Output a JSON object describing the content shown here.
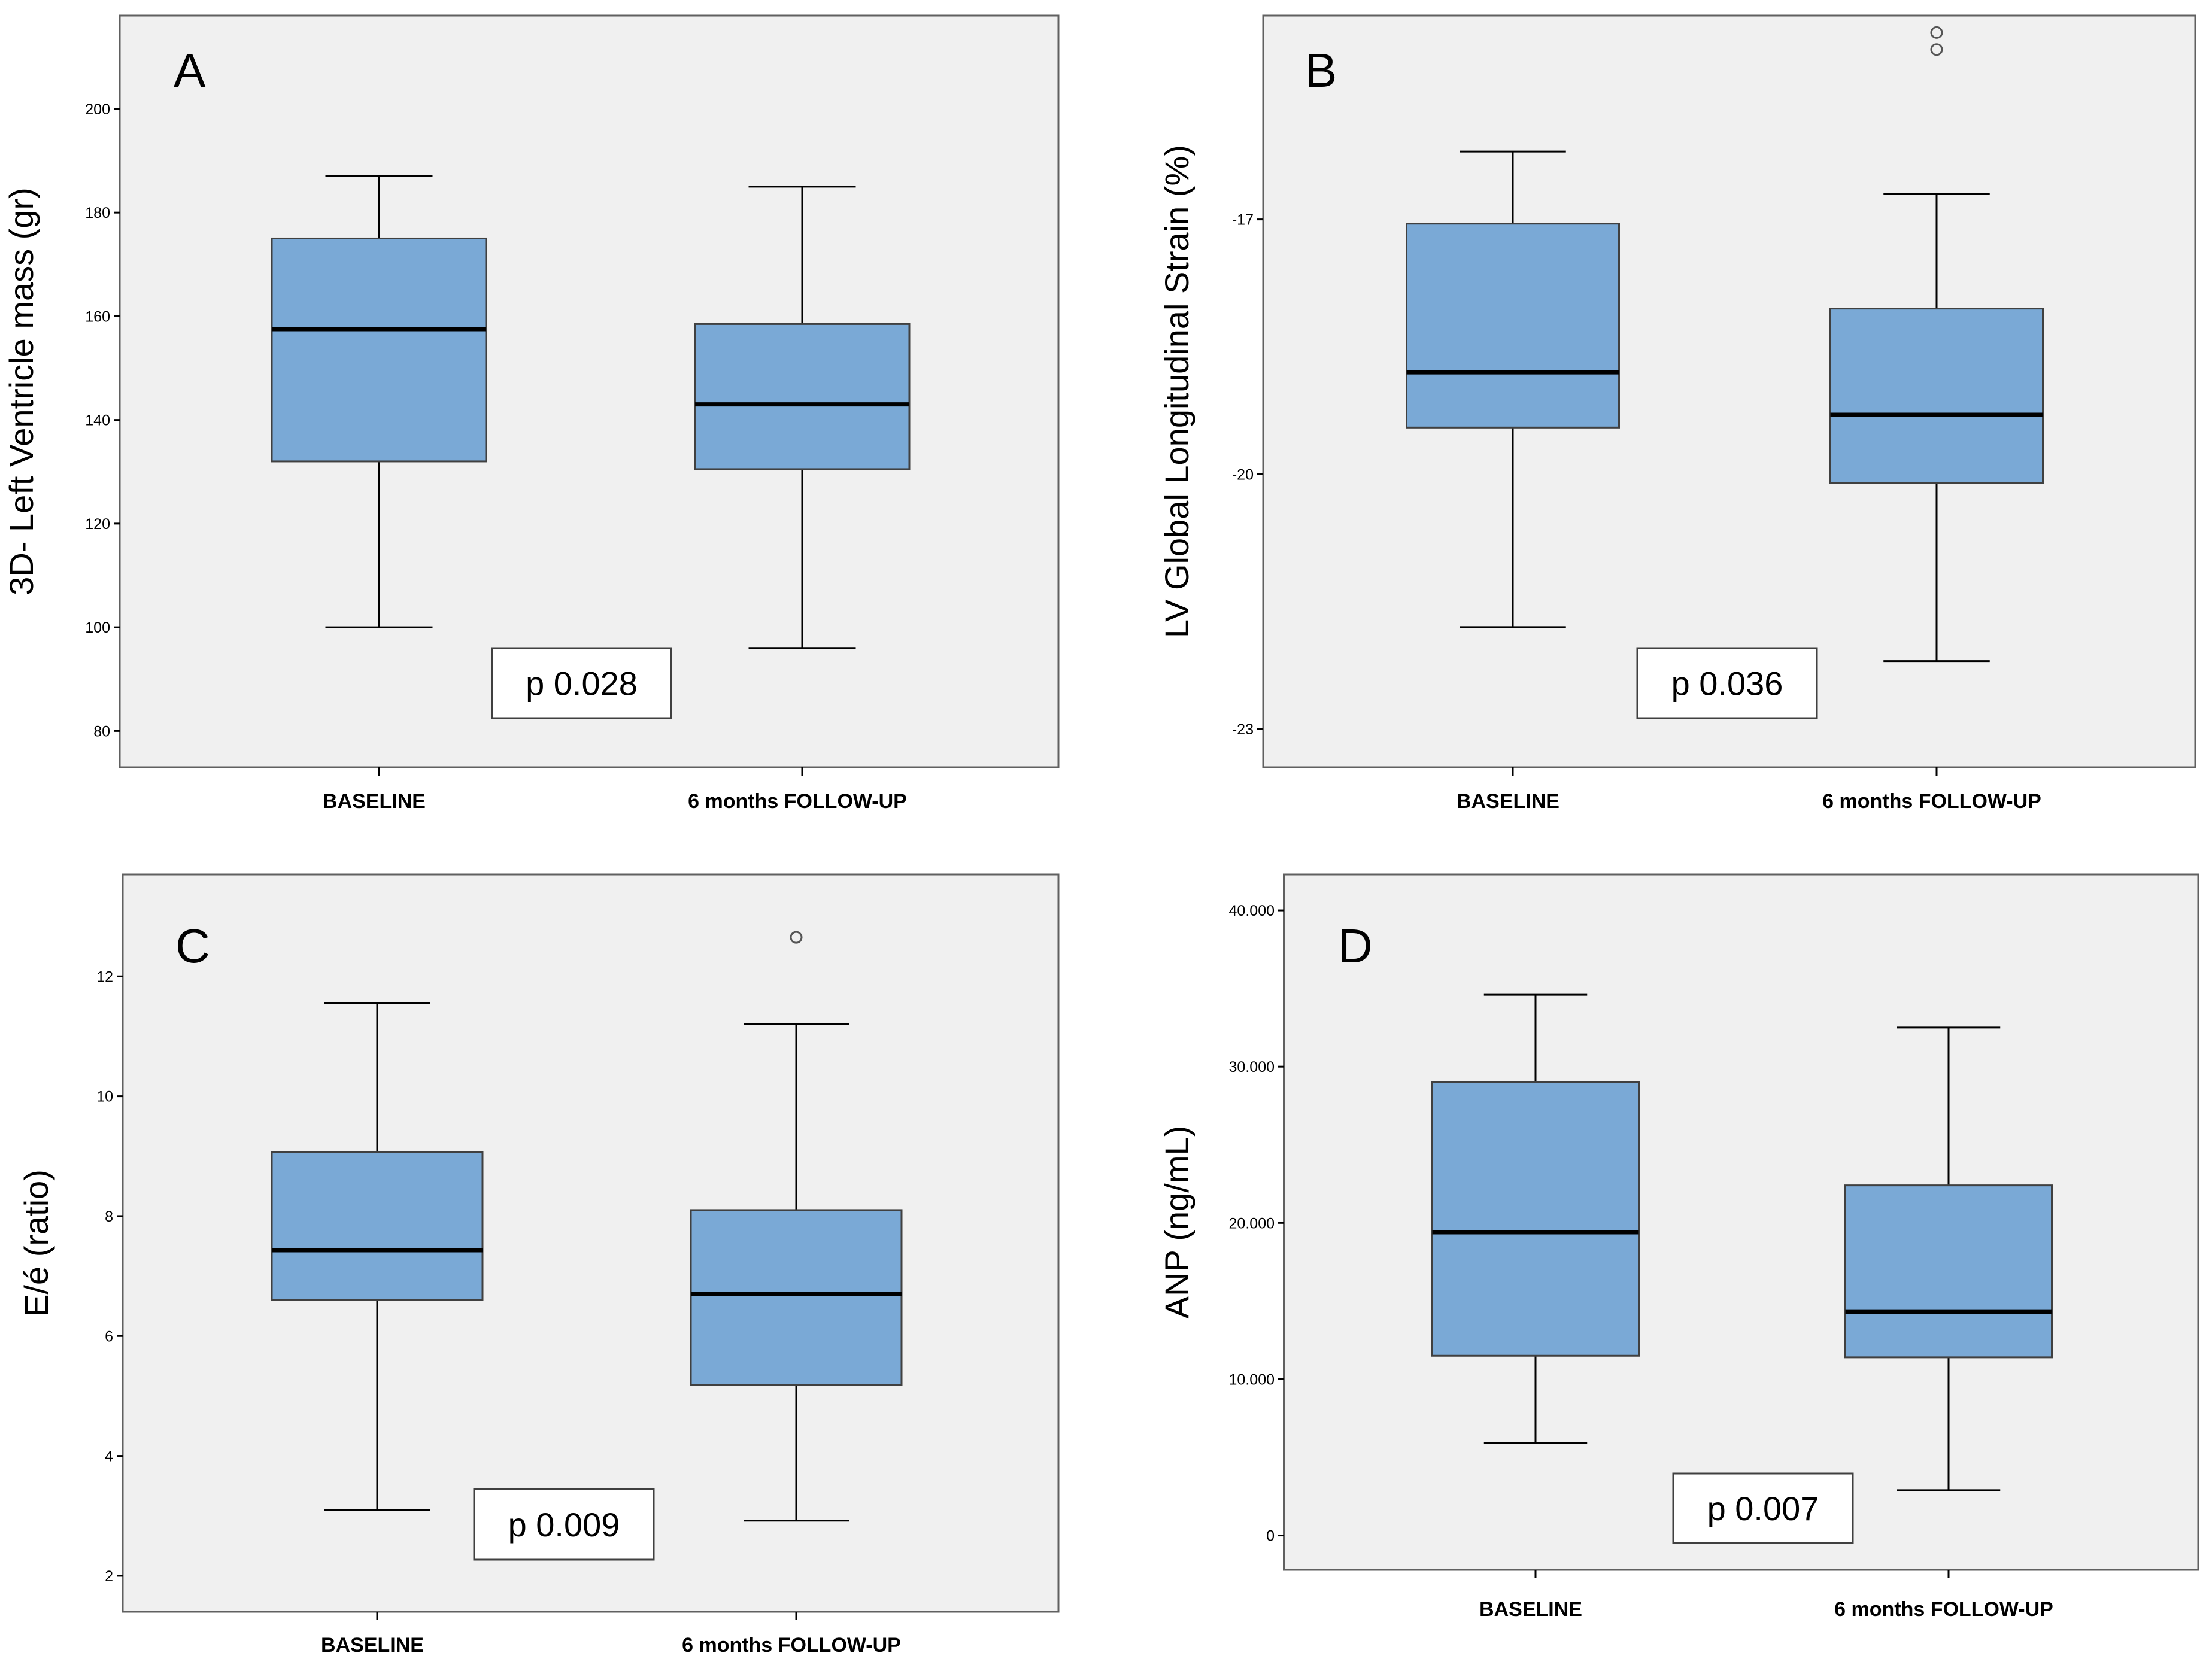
{
  "chart_data": [
    {
      "type": "box",
      "panel": "A",
      "ylabel": "3D- Left Ventricle mass (gr)",
      "categories": [
        "BASELINE",
        "6 months FOLLOW-UP"
      ],
      "ylim": [
        73,
        218
      ],
      "yticks": [
        "80",
        "100",
        "120",
        "140",
        "160",
        "180",
        "200"
      ],
      "ytick_values": [
        80,
        100,
        120,
        140,
        160,
        180,
        200
      ],
      "boxes": [
        {
          "min": 100,
          "q1": 132,
          "median": 157.5,
          "q3": 175,
          "max": 187,
          "outliers": []
        },
        {
          "min": 96,
          "q1": 130.5,
          "median": 143,
          "q3": 158.5,
          "max": 185,
          "outliers": []
        }
      ],
      "p_value": "p 0.028"
    },
    {
      "type": "box",
      "panel": "B",
      "ylabel": "LV Global Longitudinal Strain (%)",
      "categories": [
        "BASELINE",
        "6 months FOLLOW-UP"
      ],
      "ylim": [
        -23.45,
        -14.6
      ],
      "yticks": [
        "-17",
        "-20",
        "-23"
      ],
      "ytick_values": [
        -17,
        -20,
        -23
      ],
      "boxes": [
        {
          "min": -21.8,
          "q1": -19.45,
          "median": -18.8,
          "q3": -17.05,
          "max": -16.2,
          "outliers": []
        },
        {
          "min": -22.2,
          "q1": -20.1,
          "median": -19.3,
          "q3": -18.05,
          "max": -16.7,
          "outliers": [
            -14.8,
            -15.0
          ]
        }
      ],
      "p_value": "p 0.036"
    },
    {
      "type": "box",
      "panel": "C",
      "ylabel": "E/é  (ratio)",
      "categories": [
        "BASELINE",
        "6 months FOLLOW-UP"
      ],
      "ylim": [
        1.4,
        13.7
      ],
      "yticks": [
        "2",
        "4",
        "6",
        "8",
        "10",
        "12"
      ],
      "ytick_values": [
        2,
        4,
        6,
        8,
        10,
        12
      ],
      "boxes": [
        {
          "min": 3.1,
          "q1": 6.6,
          "median": 7.43,
          "q3": 9.07,
          "max": 11.55,
          "outliers": []
        },
        {
          "min": 2.92,
          "q1": 5.18,
          "median": 6.7,
          "q3": 8.1,
          "max": 11.2,
          "outliers": [
            12.65
          ]
        }
      ],
      "p_value": "p 0.009"
    },
    {
      "type": "box",
      "panel": "D",
      "ylabel": "ANP  (ng/mL)",
      "categories": [
        "BASELINE",
        "6 months FOLLOW-UP"
      ],
      "ylim": [
        -2200,
        42300
      ],
      "yticks": [
        "0",
        "10.000",
        "20.000",
        "30.000",
        "40.000"
      ],
      "ytick_values": [
        0,
        10000,
        20000,
        30000,
        40000
      ],
      "boxes": [
        {
          "min": 5900,
          "q1": 11500,
          "median": 19400,
          "q3": 29000,
          "max": 34600,
          "outliers": []
        },
        {
          "min": 2900,
          "q1": 11400,
          "median": 14300,
          "q3": 22400,
          "max": 32500,
          "outliers": []
        }
      ],
      "p_value": "p 0.007"
    }
  ]
}
